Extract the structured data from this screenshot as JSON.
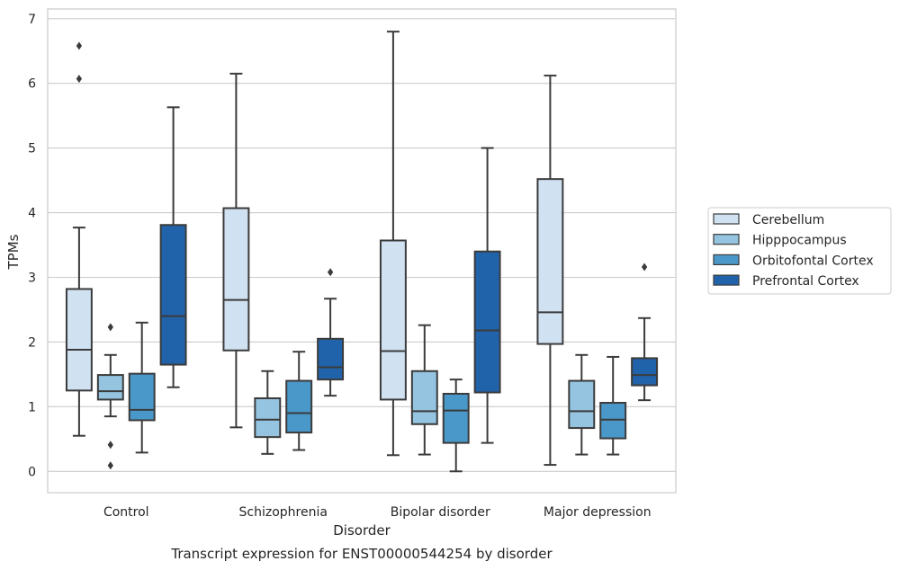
{
  "caption": "Transcript expression for ENST00000544254 by disorder",
  "chart_data": {
    "type": "box",
    "xlabel": "Disorder",
    "ylabel": "TPMs",
    "ylim": [
      -0.33,
      7.15
    ],
    "yticks": [
      0,
      1,
      2,
      3,
      4,
      5,
      6,
      7
    ],
    "grid": true,
    "legend_position": "right",
    "categories": [
      "Control",
      "Schizophrenia",
      "Bipolar disorder",
      "Major depression"
    ],
    "series": [
      {
        "name": "Cerebellum",
        "color": "#d0e1f2",
        "boxes": [
          {
            "whisker_low": 0.55,
            "q1": 1.25,
            "median": 1.88,
            "q3": 2.82,
            "whisker_high": 3.77,
            "outliers": [
              6.07,
              6.58
            ]
          },
          {
            "whisker_low": 0.68,
            "q1": 1.87,
            "median": 2.65,
            "q3": 4.07,
            "whisker_high": 6.15,
            "outliers": []
          },
          {
            "whisker_low": 0.25,
            "q1": 1.11,
            "median": 1.86,
            "q3": 3.57,
            "whisker_high": 6.8,
            "outliers": []
          },
          {
            "whisker_low": 0.1,
            "q1": 1.97,
            "median": 2.46,
            "q3": 4.52,
            "whisker_high": 6.12,
            "outliers": []
          }
        ]
      },
      {
        "name": "Hipppocampus",
        "color": "#94c4df",
        "boxes": [
          {
            "whisker_low": 0.85,
            "q1": 1.11,
            "median": 1.24,
            "q3": 1.49,
            "whisker_high": 1.8,
            "outliers": [
              2.23,
              0.41,
              0.09
            ]
          },
          {
            "whisker_low": 0.27,
            "q1": 0.53,
            "median": 0.8,
            "q3": 1.13,
            "whisker_high": 1.55,
            "outliers": []
          },
          {
            "whisker_low": 0.26,
            "q1": 0.73,
            "median": 0.93,
            "q3": 1.55,
            "whisker_high": 2.26,
            "outliers": []
          },
          {
            "whisker_low": 0.26,
            "q1": 0.67,
            "median": 0.93,
            "q3": 1.4,
            "whisker_high": 1.8,
            "outliers": []
          }
        ]
      },
      {
        "name": "Orbitofontal Cortex",
        "color": "#4a98c9",
        "boxes": [
          {
            "whisker_low": 0.29,
            "q1": 0.79,
            "median": 0.95,
            "q3": 1.51,
            "whisker_high": 2.3,
            "outliers": []
          },
          {
            "whisker_low": 0.33,
            "q1": 0.6,
            "median": 0.9,
            "q3": 1.4,
            "whisker_high": 1.85,
            "outliers": []
          },
          {
            "whisker_low": 0.0,
            "q1": 0.44,
            "median": 0.94,
            "q3": 1.2,
            "whisker_high": 1.42,
            "outliers": []
          },
          {
            "whisker_low": 0.26,
            "q1": 0.51,
            "median": 0.8,
            "q3": 1.06,
            "whisker_high": 1.77,
            "outliers": []
          }
        ]
      },
      {
        "name": "Prefrontal Cortex",
        "color": "#2163aa",
        "boxes": [
          {
            "whisker_low": 1.3,
            "q1": 1.65,
            "median": 2.4,
            "q3": 3.81,
            "whisker_high": 5.63,
            "outliers": []
          },
          {
            "whisker_low": 1.17,
            "q1": 1.42,
            "median": 1.61,
            "q3": 2.05,
            "whisker_high": 2.67,
            "outliers": [
              3.08
            ]
          },
          {
            "whisker_low": 0.44,
            "q1": 1.22,
            "median": 2.18,
            "q3": 3.4,
            "whisker_high": 5.0,
            "outliers": []
          },
          {
            "whisker_low": 1.1,
            "q1": 1.33,
            "median": 1.49,
            "q3": 1.75,
            "whisker_high": 2.37,
            "outliers": [
              3.16
            ]
          }
        ]
      }
    ]
  }
}
